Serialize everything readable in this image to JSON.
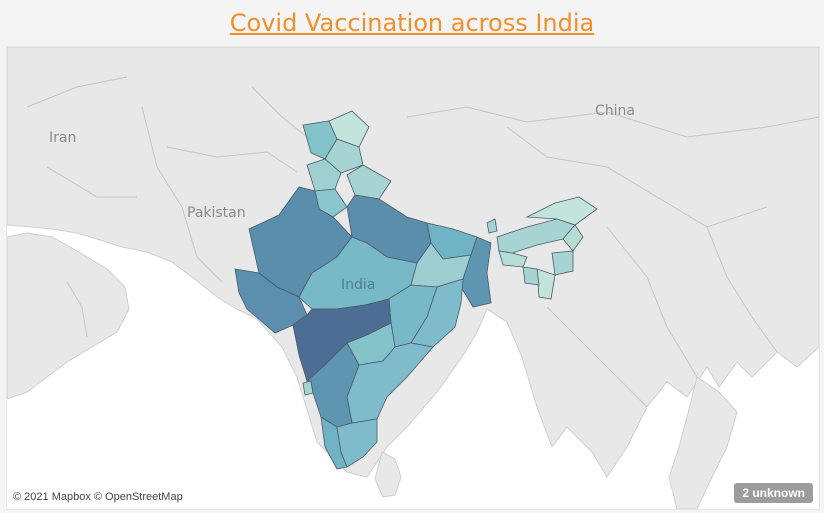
{
  "title": "Covid Vaccination across India",
  "map": {
    "country_labels": {
      "iran": "Iran",
      "pakistan": "Pakistan",
      "china": "China",
      "india": "India"
    },
    "attribution": "© 2021 Mapbox © OpenStreetMap",
    "unknown_badge": "2 unknown",
    "colors": {
      "land": "#e6e6e6",
      "water": "#ffffff",
      "border": "#c9c9c9",
      "state_border": "#4a5c66",
      "scale_low": "#c3e4dc",
      "scale_mid": "#78b9c8",
      "scale_high": "#4e6d95"
    }
  }
}
